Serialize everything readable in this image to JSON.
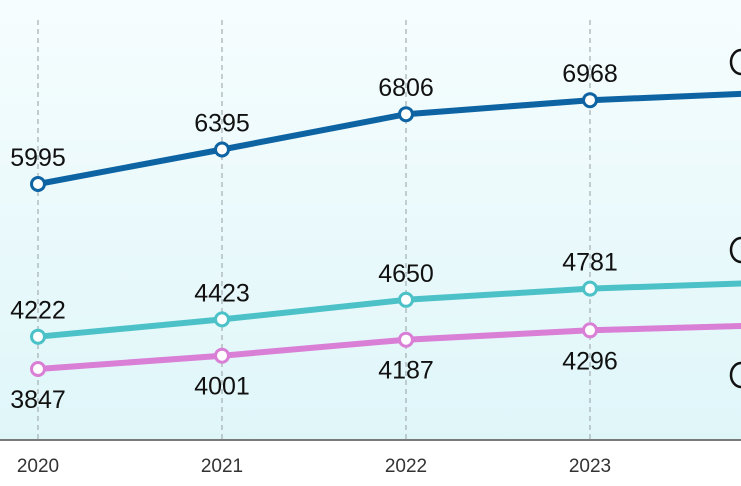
{
  "chart_data": {
    "type": "line",
    "title": "",
    "xlabel": "",
    "ylabel": "",
    "categories": [
      "2020",
      "2021",
      "2022",
      "2023"
    ],
    "ylim": [
      3000,
      7500
    ],
    "grid": "vertical-dashed",
    "legend": "none",
    "series": [
      {
        "color": "#0e64a3",
        "values": [
          5995,
          6395,
          6806,
          6968
        ],
        "label_position": "above"
      },
      {
        "color": "#4cc2c8",
        "values": [
          4222,
          4423,
          4650,
          4781
        ],
        "label_position": "above"
      },
      {
        "color": "#d97fd6",
        "values": [
          3847,
          4001,
          4187,
          4296
        ],
        "label_position": "below"
      }
    ]
  }
}
